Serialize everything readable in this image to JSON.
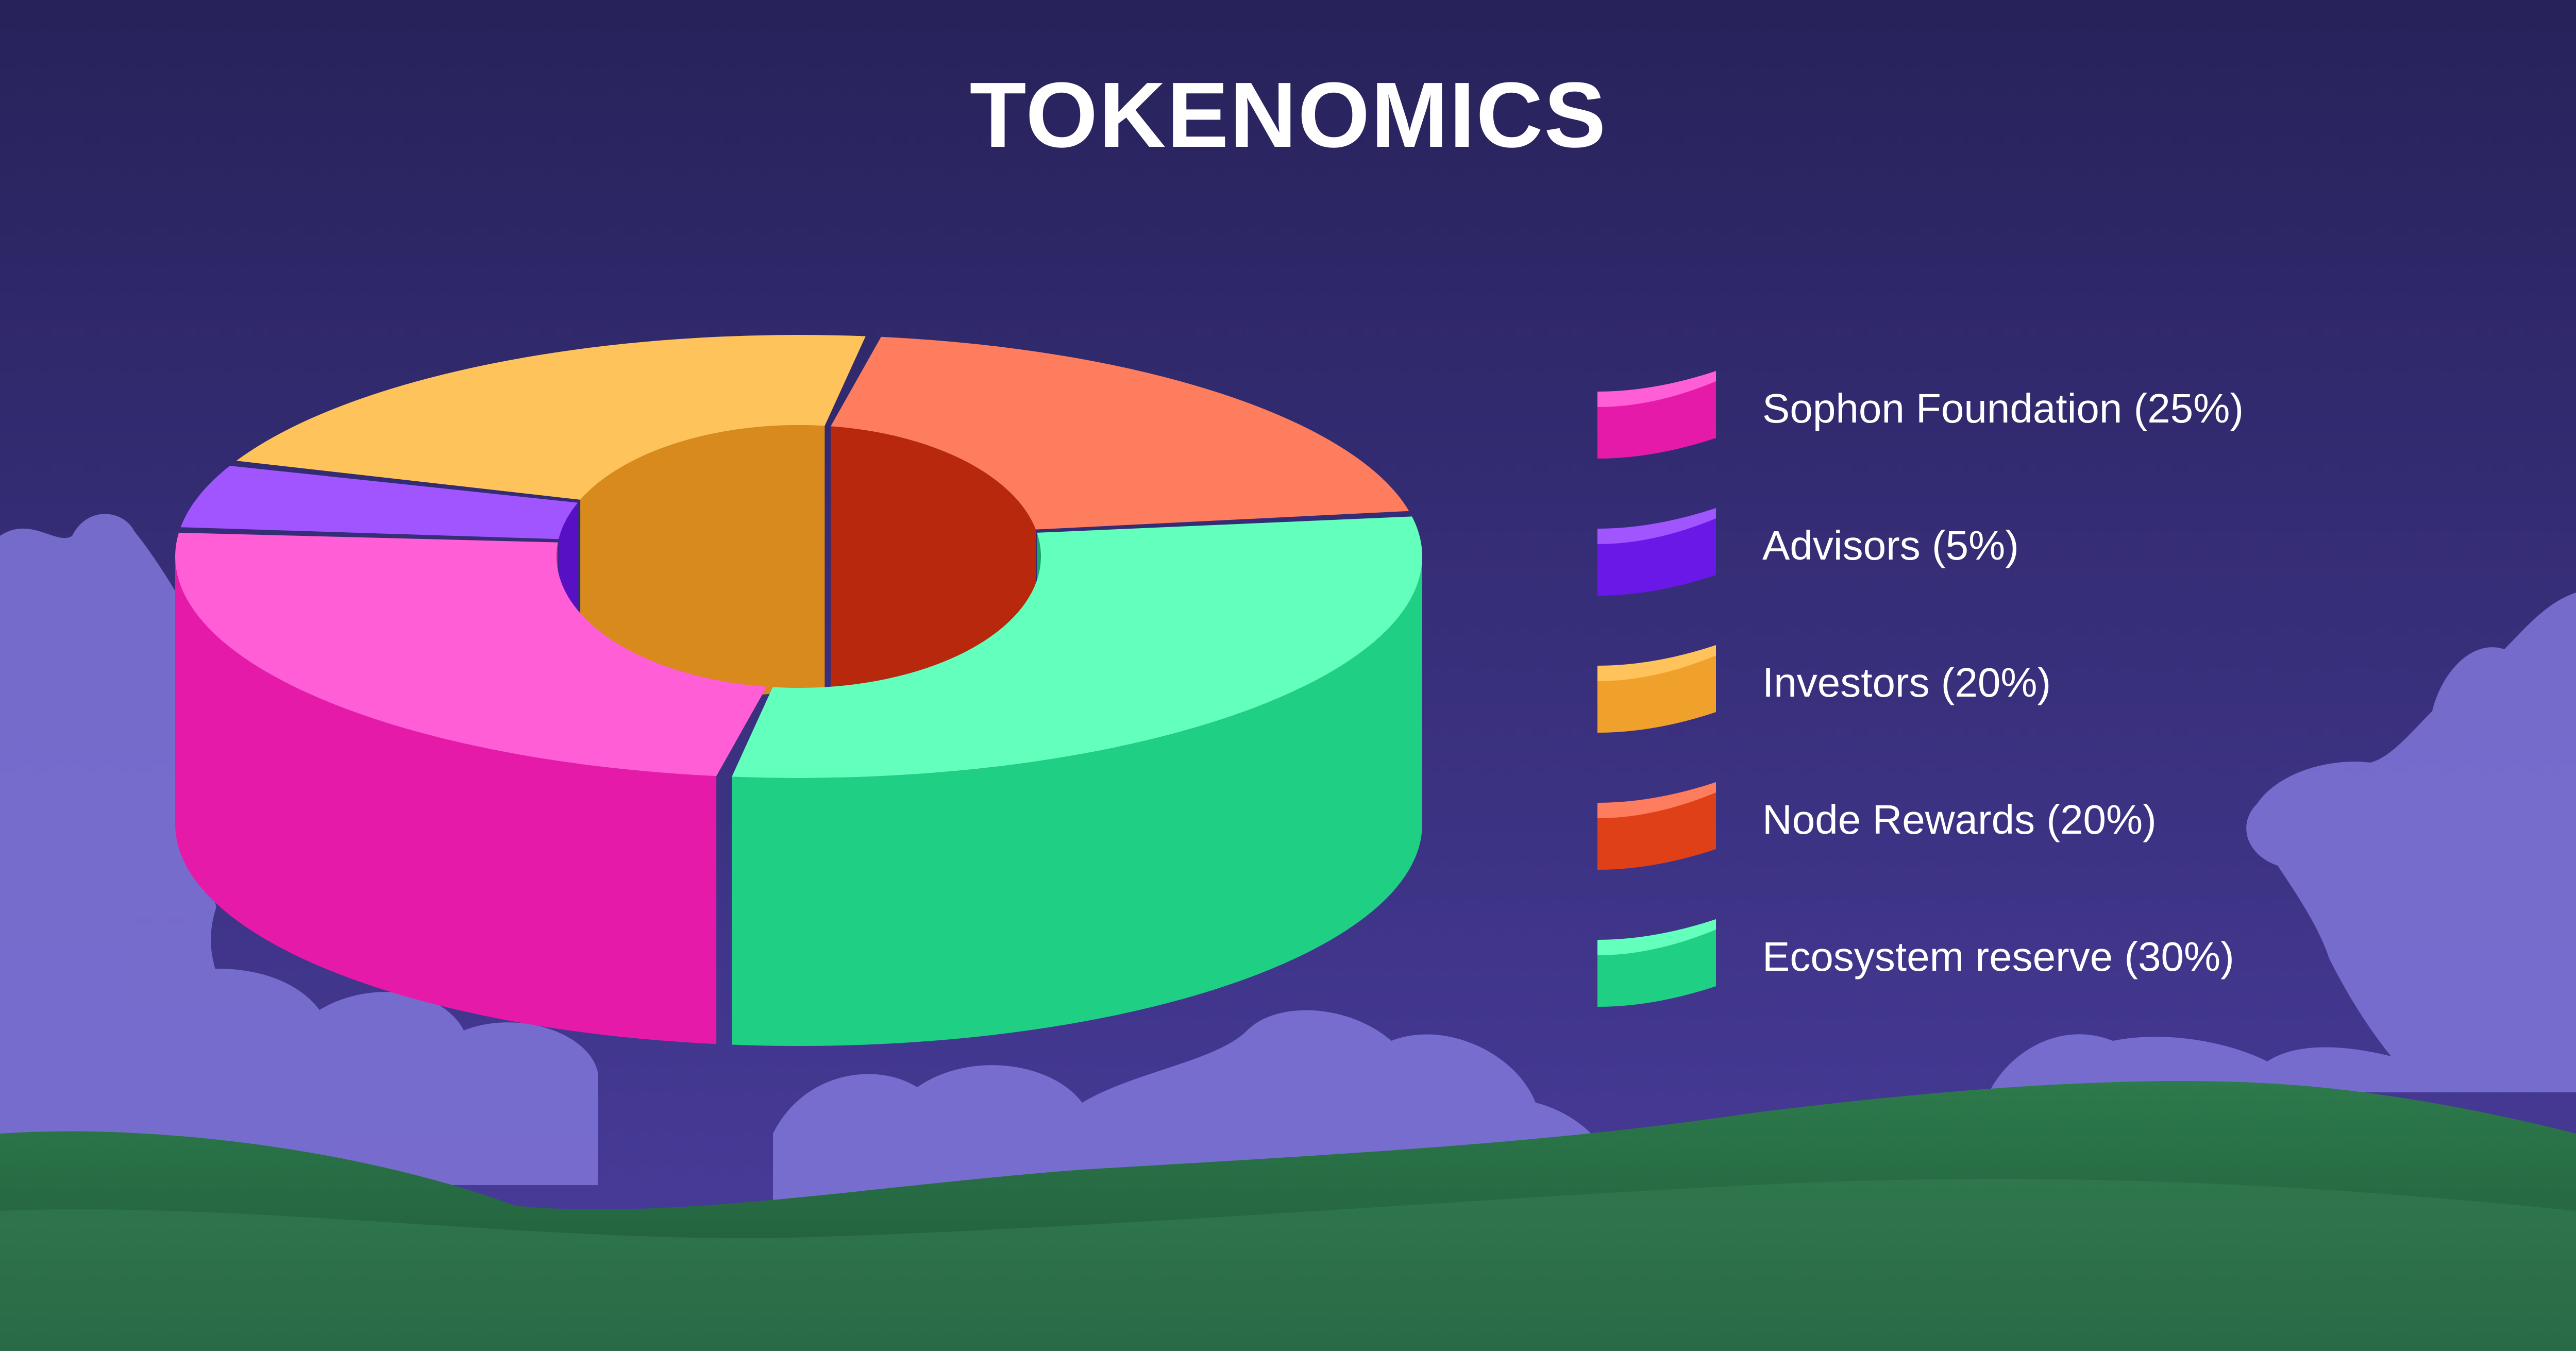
{
  "colors": {
    "sky_top": "#27225a",
    "sky_bottom": "#4a3d9e",
    "cloud": "#8279db",
    "grass": "#2a6b45",
    "text": "#ffffff"
  },
  "chart_data": {
    "type": "pie",
    "title": "TOKENOMICS",
    "style": "3d-donut",
    "legend_position": "right",
    "slices": [
      {
        "label": "Sophon Foundation (25%)",
        "value": 25,
        "color_top": "#ff5ed6",
        "color_side": "#e61aa8",
        "color_inner": "#c4178f"
      },
      {
        "label": "Advisors (5%)",
        "value": 5,
        "color_top": "#a155ff",
        "color_side": "#6a18e8",
        "color_inner": "#5710c4"
      },
      {
        "label": "Investors (20%)",
        "value": 20,
        "color_top": "#ffc35c",
        "color_side": "#f0a12c",
        "color_inner": "#d88a1c"
      },
      {
        "label": "Node Rewards (20%)",
        "value": 20,
        "color_top": "#ff7d5f",
        "color_side": "#e04018",
        "color_inner": "#b8280d"
      },
      {
        "label": "Ecosystem reserve (30%)",
        "value": 30,
        "color_top": "#62ffbd",
        "color_side": "#1fcf84",
        "color_inner": "#17a868"
      }
    ]
  }
}
